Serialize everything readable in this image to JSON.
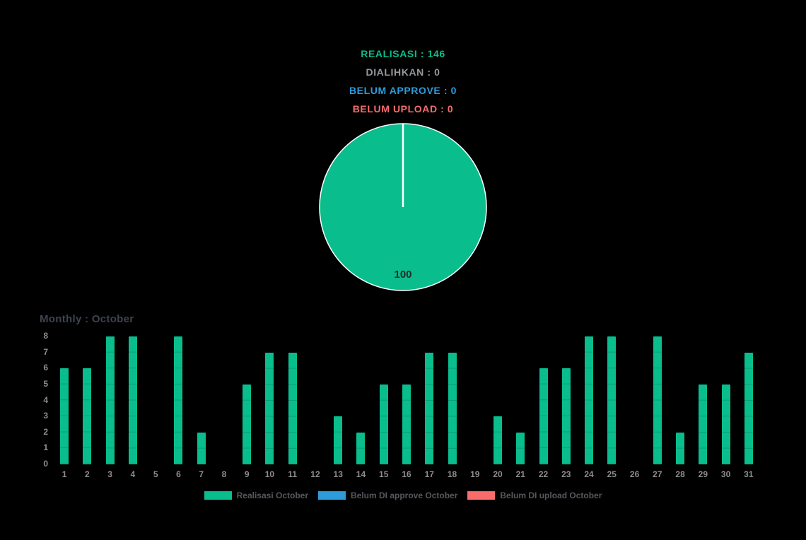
{
  "colors": {
    "background": "#000000",
    "green": "#0abd8c",
    "blue": "#2e9cdb",
    "red": "#f86c6b",
    "summary_gray": "#95989c",
    "axis_label": "#8e8e8e",
    "chart_title": "#3d4450",
    "legend_text": "#55595f",
    "pie_border": "#ffffff",
    "pie_data_label": "#222a2a"
  },
  "summary": {
    "items": [
      {
        "id": "realisasi",
        "text": "REALISASI : 146",
        "color": "#0abd8c"
      },
      {
        "id": "dialihkan",
        "text": "DIALIHKAN : 0",
        "color": "#95989c"
      },
      {
        "id": "belum-approve",
        "text": "BELUM APPROVE : 0",
        "color": "#2e9cdb"
      },
      {
        "id": "belum-upload",
        "text": "BELUM UPLOAD : 0",
        "color": "#f86c6b"
      }
    ]
  },
  "chart_data": [
    {
      "type": "pie",
      "title": "",
      "slices": [
        {
          "label": "Realisasi October",
          "value": 100,
          "color": "#0abd8c"
        }
      ],
      "data_label": "100",
      "border_color": "#ffffff",
      "legend_position": "none"
    },
    {
      "type": "bar",
      "title": "Monthly : October",
      "categories": [
        "1",
        "2",
        "3",
        "4",
        "5",
        "6",
        "7",
        "8",
        "9",
        "10",
        "11",
        "12",
        "13",
        "14",
        "15",
        "16",
        "17",
        "18",
        "19",
        "20",
        "21",
        "22",
        "23",
        "24",
        "25",
        "26",
        "27",
        "28",
        "29",
        "30",
        "31"
      ],
      "series": [
        {
          "name": "Realisasi October",
          "color": "#0abd8c",
          "values": [
            6,
            6,
            8,
            8,
            0,
            8,
            2,
            0,
            5,
            7,
            7,
            0,
            3,
            2,
            5,
            5,
            7,
            7,
            0,
            3,
            2,
            6,
            6,
            8,
            8,
            0,
            8,
            2,
            5,
            5,
            7
          ]
        },
        {
          "name": "Belum DI approve October",
          "color": "#2e9cdb",
          "values": [
            0,
            0,
            0,
            0,
            0,
            0,
            0,
            0,
            0,
            0,
            0,
            0,
            0,
            0,
            0,
            0,
            0,
            0,
            0,
            0,
            0,
            0,
            0,
            0,
            0,
            0,
            0,
            0,
            0,
            0,
            0
          ]
        },
        {
          "name": "Belum DI upload October",
          "color": "#f86c6b",
          "values": [
            0,
            0,
            0,
            0,
            0,
            0,
            0,
            0,
            0,
            0,
            0,
            0,
            0,
            0,
            0,
            0,
            0,
            0,
            0,
            0,
            0,
            0,
            0,
            0,
            0,
            0,
            0,
            0,
            0,
            0,
            0
          ]
        }
      ],
      "xlabel": "",
      "ylabel": "",
      "ylim": [
        0,
        8
      ],
      "yticks": [
        "0",
        "1",
        "2",
        "3",
        "4",
        "5",
        "6",
        "7",
        "8"
      ],
      "grid": false,
      "legend_position": "bottom"
    }
  ],
  "legend": {
    "items": [
      {
        "label": "Realisasi October",
        "color": "#0abd8c"
      },
      {
        "label": "Belum DI approve October",
        "color": "#2e9cdb"
      },
      {
        "label": "Belum DI upload October",
        "color": "#f86c6b"
      }
    ]
  }
}
